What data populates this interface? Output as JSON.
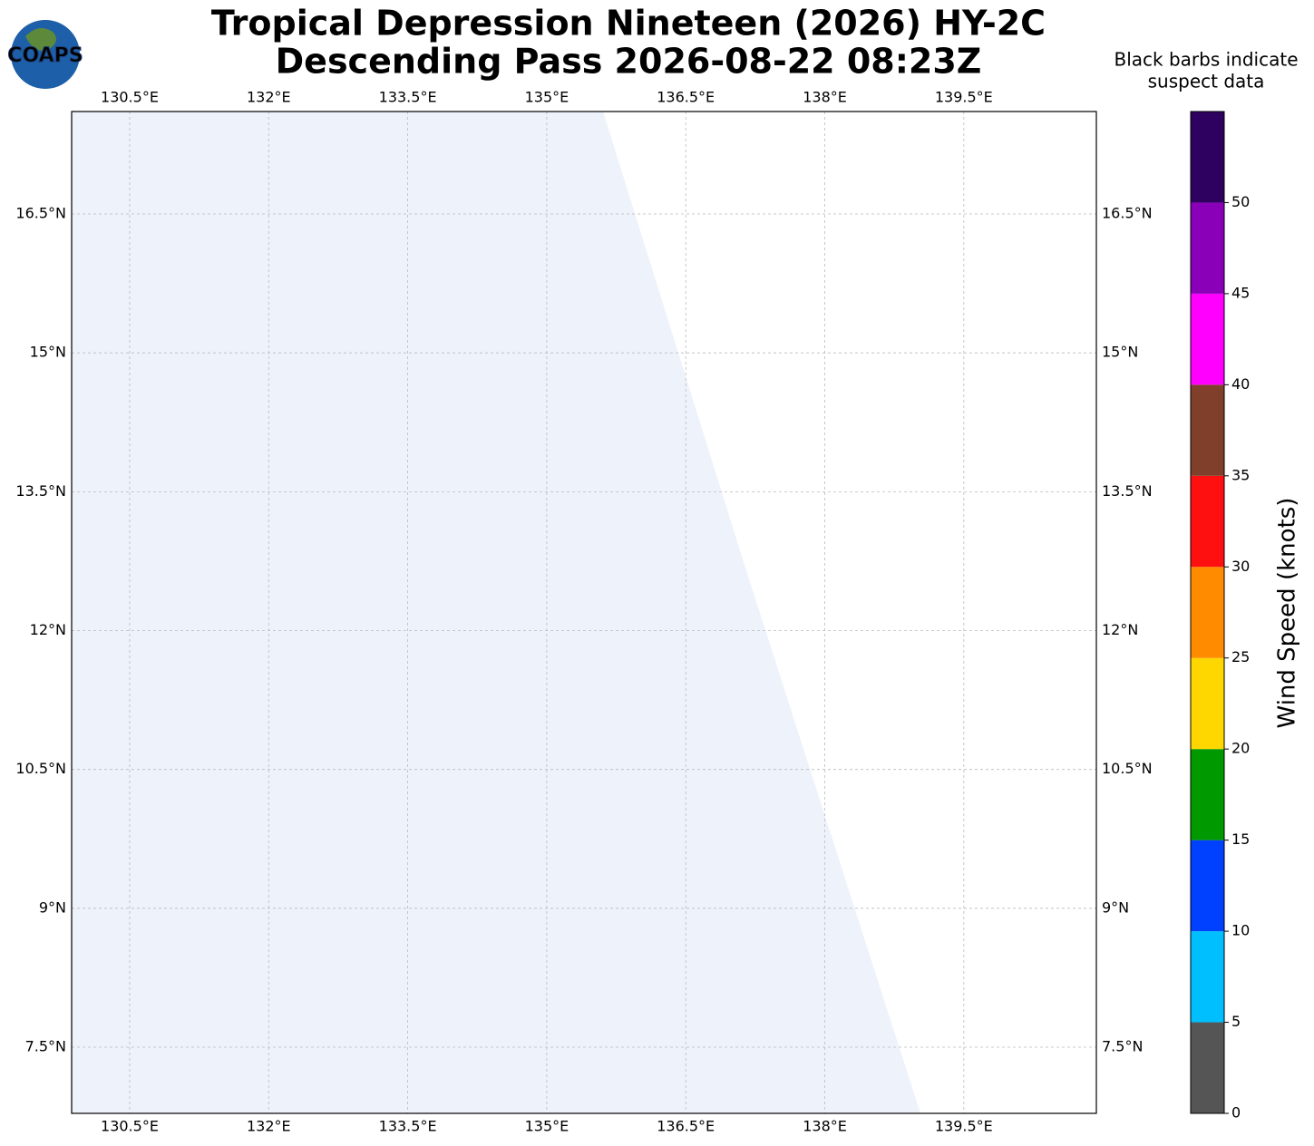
{
  "map": {
    "title_line1": "Tropical Depression Nineteen (2026) HY-2C",
    "title_line2": "Descending Pass 2026-08-22 08:23Z",
    "logo_text": "COAPS",
    "note_line1": "Black barbs indicate",
    "note_line2": "suspect data",
    "lonlim": [
      129.874,
      140.93
    ],
    "latlim": [
      6.785,
      17.607
    ],
    "lon_ticks": [
      {
        "value": 130.5,
        "label": "130.5°E"
      },
      {
        "value": 132,
        "label": "132°E"
      },
      {
        "value": 133.5,
        "label": "133.5°E"
      },
      {
        "value": 135,
        "label": "135°E"
      },
      {
        "value": 136.5,
        "label": "136.5°E"
      },
      {
        "value": 138,
        "label": "138°E"
      },
      {
        "value": 139.5,
        "label": "139.5°E"
      }
    ],
    "lat_ticks": [
      {
        "value": 16.5,
        "label": "16.5°N"
      },
      {
        "value": 15,
        "label": "15°N"
      },
      {
        "value": 13.5,
        "label": "13.5°N"
      },
      {
        "value": 12,
        "label": "12°N"
      },
      {
        "value": 10.5,
        "label": "10.5°N"
      },
      {
        "value": 9,
        "label": "9°N"
      },
      {
        "value": 7.5,
        "label": "7.5°N"
      }
    ],
    "grid": true,
    "colorbar": {
      "label": "Wind Speed (knots)",
      "bounds": [
        0,
        5,
        10,
        15,
        20,
        25,
        30,
        35,
        40,
        45,
        50,
        55
      ],
      "ticks": [
        0,
        5,
        10,
        15,
        20,
        25,
        30,
        35,
        40,
        45,
        50
      ],
      "colors": [
        "#555555",
        "#00bfff",
        "#0040ff",
        "#009900",
        "#ffd700",
        "#ff8c00",
        "#ff1010",
        "#7f3f2a",
        "#ff00ff",
        "#8a00b8",
        "#2e0060"
      ]
    }
  }
}
